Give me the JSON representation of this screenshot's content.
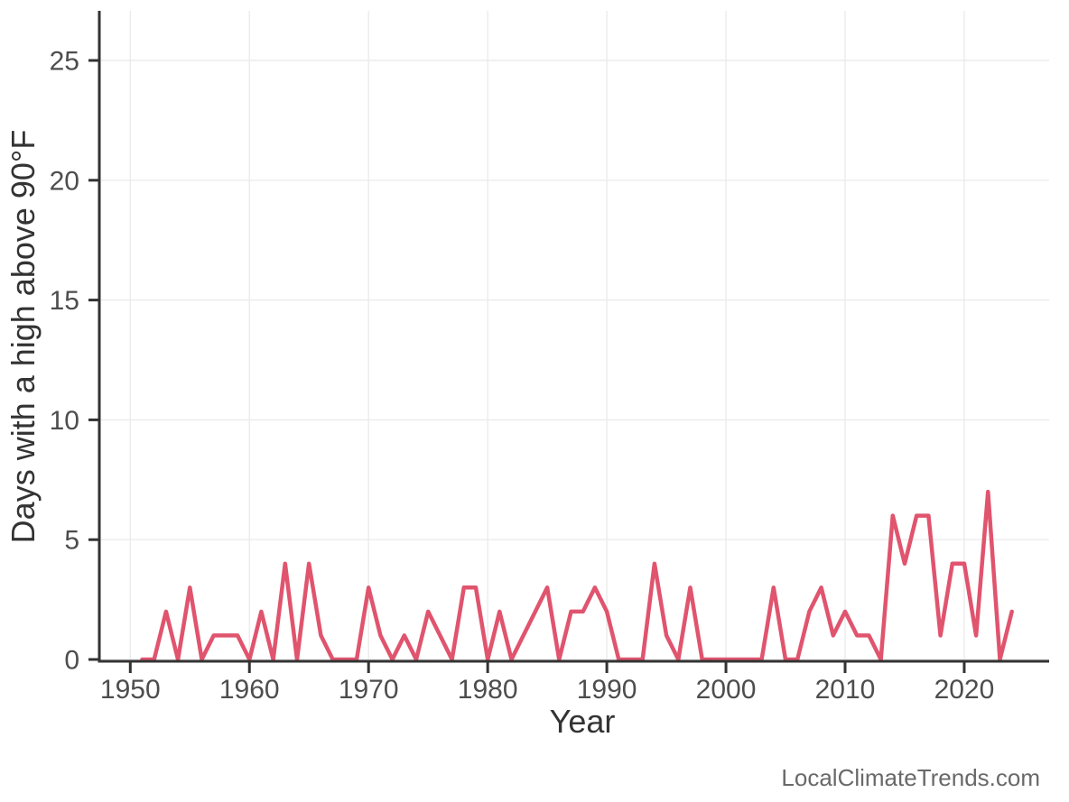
{
  "watermark": "LocalClimateTrends.com",
  "colors": {
    "line": "#e0546e",
    "axis": "#333333",
    "gridline": "#ebebeb",
    "tick_label": "#4d4d4d",
    "axis_title": "#333333",
    "watermark": "#696969",
    "background": "#ffffff"
  },
  "chart_data": {
    "type": "line",
    "title": "",
    "xlabel": "Year",
    "ylabel": "Days with a high above 90°F",
    "x_ticks": [
      1950,
      1960,
      1970,
      1980,
      1990,
      2000,
      2010,
      2020
    ],
    "y_ticks": [
      0,
      5,
      10,
      15,
      20,
      25
    ],
    "xlim": [
      1947.4,
      2027.1
    ],
    "ylim": [
      0,
      27
    ],
    "grid": "major-only",
    "legend_position": "none",
    "series": [
      {
        "name": "Days with a high above 90°F",
        "x": [
          1951,
          1952,
          1953,
          1954,
          1955,
          1956,
          1957,
          1958,
          1959,
          1960,
          1961,
          1962,
          1963,
          1964,
          1965,
          1966,
          1967,
          1968,
          1969,
          1970,
          1971,
          1972,
          1973,
          1974,
          1975,
          1976,
          1977,
          1978,
          1979,
          1980,
          1981,
          1982,
          1983,
          1984,
          1985,
          1986,
          1987,
          1988,
          1989,
          1990,
          1991,
          1992,
          1993,
          1994,
          1995,
          1996,
          1997,
          1998,
          1999,
          2000,
          2001,
          2002,
          2003,
          2004,
          2005,
          2006,
          2007,
          2008,
          2009,
          2010,
          2011,
          2012,
          2013,
          2014,
          2015,
          2016,
          2017,
          2018,
          2019,
          2020,
          2021,
          2022,
          2023,
          2024
        ],
        "values": [
          0,
          0,
          2,
          0,
          3,
          0,
          1,
          1,
          1,
          0,
          2,
          0,
          4,
          0,
          4,
          1,
          0,
          0,
          0,
          3,
          1,
          0,
          1,
          0,
          2,
          1,
          0,
          3,
          3,
          0,
          2,
          0,
          1,
          2,
          3,
          0,
          2,
          2,
          3,
          2,
          0,
          0,
          0,
          4,
          1,
          0,
          3,
          0,
          0,
          0,
          0,
          0,
          0,
          3,
          0,
          0,
          2,
          3,
          1,
          2,
          1,
          1,
          0,
          6,
          4,
          6,
          6,
          1,
          4,
          4,
          1,
          7,
          0,
          2
        ]
      }
    ]
  }
}
